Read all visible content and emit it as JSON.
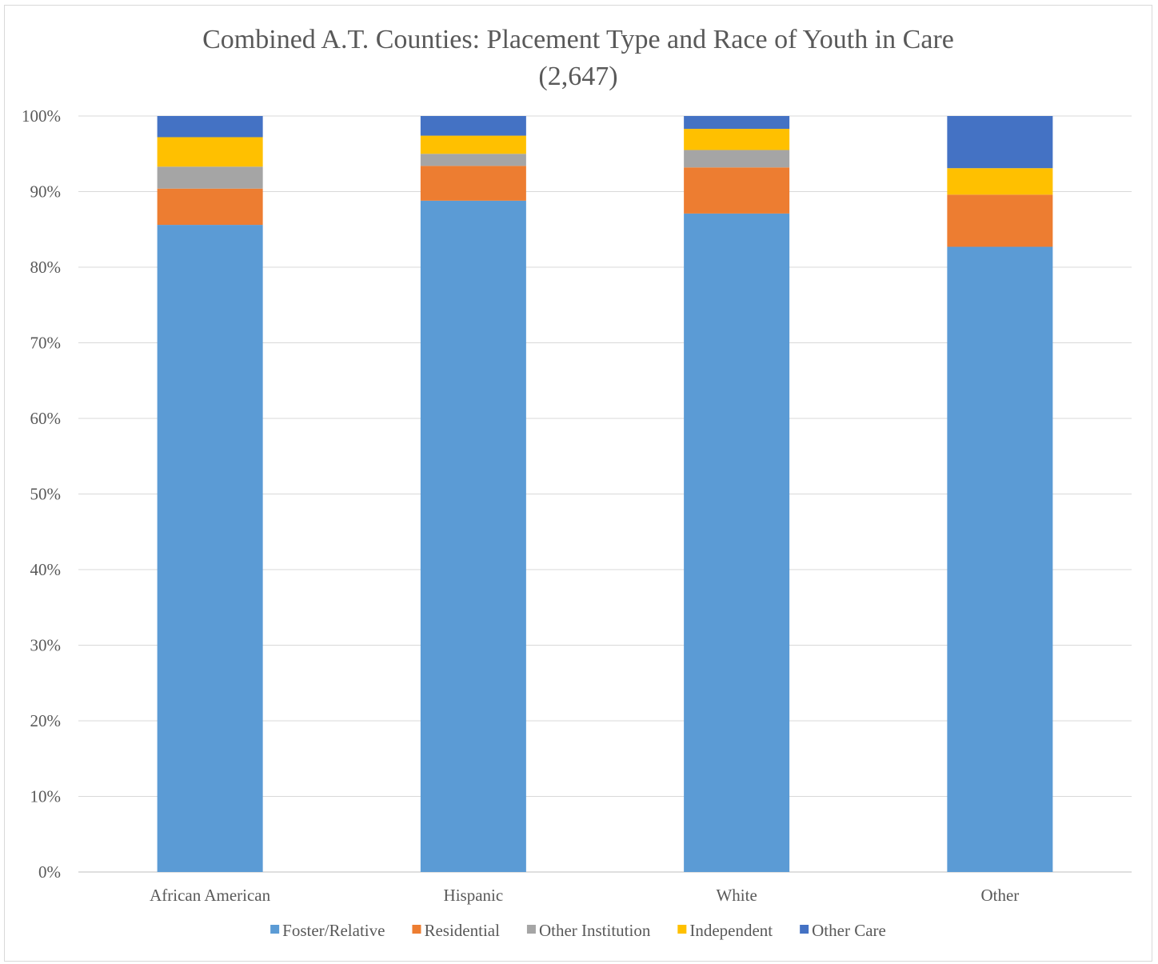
{
  "chart_data": {
    "type": "bar",
    "stacked": true,
    "title": "Combined A.T. Counties: Placement Type and Race of Youth in Care",
    "subtitle": "(2,647)",
    "categories": [
      "African American",
      "Hispanic",
      "White",
      "Other"
    ],
    "ylim": [
      0,
      100
    ],
    "yticks": [
      "0%",
      "10%",
      "20%",
      "30%",
      "40%",
      "50%",
      "60%",
      "70%",
      "80%",
      "90%",
      "100%"
    ],
    "grid": true,
    "legend_position": "bottom",
    "series": [
      {
        "name": "Foster/Relative",
        "color": "#5b9bd5",
        "values": [
          85.6,
          88.8,
          87.1,
          82.7
        ]
      },
      {
        "name": "Residential",
        "color": "#ed7d31",
        "values": [
          4.8,
          4.6,
          6.1,
          6.9
        ]
      },
      {
        "name": "Other Institution",
        "color": "#a5a5a5",
        "values": [
          2.9,
          1.6,
          2.3,
          0.0
        ]
      },
      {
        "name": "Independent",
        "color": "#ffc000",
        "values": [
          3.9,
          2.4,
          2.8,
          3.5
        ]
      },
      {
        "name": "Other Care",
        "color": "#4472c4",
        "values": [
          2.8,
          2.6,
          1.7,
          6.9
        ]
      }
    ]
  }
}
